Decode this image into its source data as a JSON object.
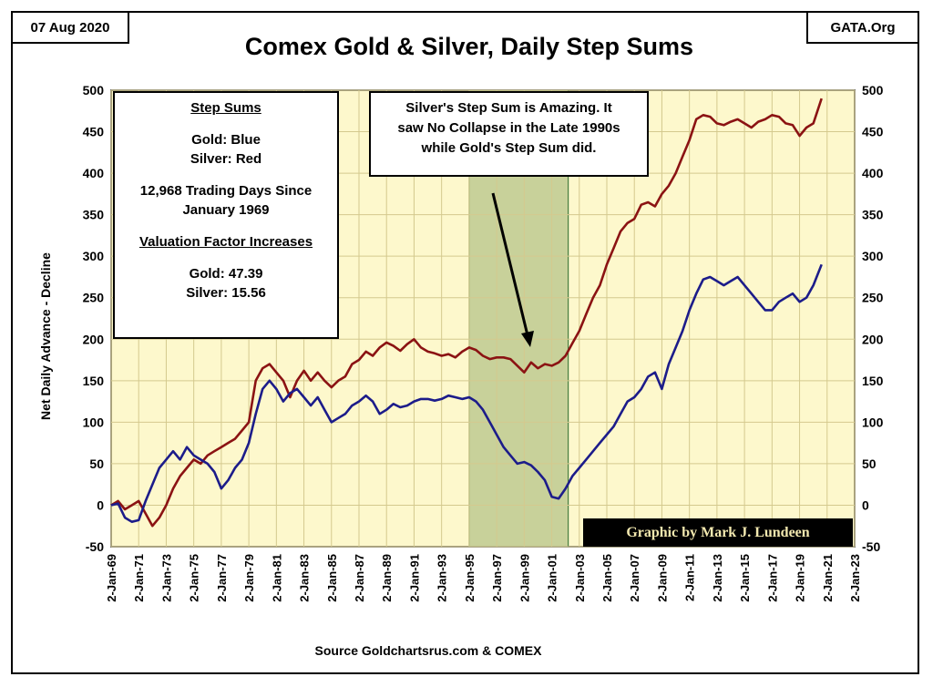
{
  "header": {
    "date": "07 Aug 2020",
    "site": "GATA.Org",
    "title": "Comex Gold & Silver, Daily Step Sums",
    "source": "Source Goldchartsrus.com & COMEX"
  },
  "legend_box": {
    "heading": "Step Sums",
    "gold": "Gold: Blue",
    "silver": "Silver: Red",
    "days_line1": "12,968 Trading Days Since",
    "days_line2": "January 1969",
    "valuation_heading": "Valuation Factor Increases",
    "gold_factor": "Gold:  47.39",
    "silver_factor": "Silver:  15.56"
  },
  "note_box": {
    "line1": "Silver's Step Sum is Amazing.  It",
    "line2": "saw No Collapse in the Late 1990s",
    "line3": "while Gold's Step Sum did."
  },
  "credit": "Graphic by Mark J. Lundeen",
  "colors": {
    "plot_bg": "#fdf8cc",
    "gold_line": "#1c1c8a",
    "silver_line": "#8b1313",
    "highlight": "#b5c48a"
  },
  "chart_data": {
    "type": "line",
    "title": "Comex Gold & Silver, Daily Step Sums",
    "ylabel": "Net Daily Advance - Decline",
    "xlabel": "",
    "ylim": [
      -50,
      500
    ],
    "xlim": [
      1969,
      2023
    ],
    "y_ticks": [
      "-50",
      "0",
      "50",
      "100",
      "150",
      "200",
      "250",
      "300",
      "350",
      "400",
      "450",
      "500"
    ],
    "x_ticks": [
      "2-Jan-69",
      "2-Jan-71",
      "2-Jan-73",
      "2-Jan-75",
      "2-Jan-77",
      "2-Jan-79",
      "2-Jan-81",
      "2-Jan-83",
      "2-Jan-85",
      "2-Jan-87",
      "2-Jan-89",
      "2-Jan-91",
      "2-Jan-93",
      "2-Jan-95",
      "2-Jan-97",
      "2-Jan-99",
      "2-Jan-01",
      "2-Jan-03",
      "2-Jan-05",
      "2-Jan-07",
      "2-Jan-09",
      "2-Jan-11",
      "2-Jan-13",
      "2-Jan-15",
      "2-Jan-17",
      "2-Jan-19",
      "2-Jan-21",
      "2-Jan-23"
    ],
    "highlight_range": [
      1995,
      2002.2
    ],
    "grid": true,
    "series": [
      {
        "key": "gold",
        "color": "#1c1c8a",
        "x": [
          1969,
          1969.5,
          1970,
          1970.5,
          1971,
          1971.5,
          1972,
          1972.5,
          1973,
          1973.5,
          1974,
          1974.5,
          1975,
          1975.5,
          1976,
          1976.5,
          1977,
          1977.5,
          1978,
          1978.5,
          1979,
          1979.5,
          1980,
          1980.5,
          1981,
          1981.5,
          1982,
          1982.5,
          1983,
          1983.5,
          1984,
          1984.5,
          1985,
          1985.5,
          1986,
          1986.5,
          1987,
          1987.5,
          1988,
          1988.5,
          1989,
          1989.5,
          1990,
          1990.5,
          1991,
          1991.5,
          1992,
          1992.5,
          1993,
          1993.5,
          1994,
          1994.5,
          1995,
          1995.5,
          1996,
          1996.5,
          1997,
          1997.5,
          1998,
          1998.5,
          1999,
          1999.5,
          2000,
          2000.5,
          2001,
          2001.5,
          2002,
          2002.5,
          2003,
          2003.5,
          2004,
          2004.5,
          2005,
          2005.5,
          2006,
          2006.5,
          2007,
          2007.5,
          2008,
          2008.5,
          2009,
          2009.5,
          2010,
          2010.5,
          2011,
          2011.5,
          2012,
          2012.5,
          2013,
          2013.5,
          2014,
          2014.5,
          2015,
          2015.5,
          2016,
          2016.5,
          2017,
          2017.5,
          2018,
          2018.5,
          2019,
          2019.5,
          2020,
          2020.6
        ],
        "y": [
          0,
          2,
          -15,
          -20,
          -18,
          5,
          25,
          45,
          55,
          65,
          55,
          70,
          60,
          55,
          50,
          40,
          20,
          30,
          45,
          55,
          75,
          110,
          140,
          150,
          140,
          125,
          135,
          140,
          130,
          120,
          130,
          115,
          100,
          105,
          110,
          120,
          125,
          132,
          125,
          110,
          115,
          122,
          118,
          120,
          125,
          128,
          128,
          126,
          128,
          132,
          130,
          128,
          130,
          125,
          115,
          100,
          85,
          70,
          60,
          50,
          52,
          48,
          40,
          30,
          10,
          8,
          20,
          35,
          45,
          55,
          65,
          75,
          85,
          95,
          110,
          125,
          130,
          140,
          155,
          160,
          140,
          170,
          190,
          210,
          235,
          255,
          272,
          275,
          270,
          265,
          270,
          275,
          265,
          255,
          245,
          235,
          235,
          245,
          250,
          255,
          245,
          250,
          265,
          290
        ]
      },
      {
        "key": "silver",
        "color": "#8b1313",
        "x": [
          1969,
          1969.5,
          1970,
          1970.5,
          1971,
          1971.5,
          1972,
          1972.5,
          1973,
          1973.5,
          1974,
          1974.5,
          1975,
          1975.5,
          1976,
          1976.5,
          1977,
          1977.5,
          1978,
          1978.5,
          1979,
          1979.5,
          1980,
          1980.5,
          1981,
          1981.5,
          1982,
          1982.5,
          1983,
          1983.5,
          1984,
          1984.5,
          1985,
          1985.5,
          1986,
          1986.5,
          1987,
          1987.5,
          1988,
          1988.5,
          1989,
          1989.5,
          1990,
          1990.5,
          1991,
          1991.5,
          1992,
          1992.5,
          1993,
          1993.5,
          1994,
          1994.5,
          1995,
          1995.5,
          1996,
          1996.5,
          1997,
          1997.5,
          1998,
          1998.5,
          1999,
          1999.5,
          2000,
          2000.5,
          2001,
          2001.5,
          2002,
          2002.5,
          2003,
          2003.5,
          2004,
          2004.5,
          2005,
          2005.5,
          2006,
          2006.5,
          2007,
          2007.5,
          2008,
          2008.5,
          2009,
          2009.5,
          2010,
          2010.5,
          2011,
          2011.5,
          2012,
          2012.5,
          2013,
          2013.5,
          2014,
          2014.5,
          2015,
          2015.5,
          2016,
          2016.5,
          2017,
          2017.5,
          2018,
          2018.5,
          2019,
          2019.5,
          2020,
          2020.6
        ],
        "y": [
          0,
          5,
          -5,
          0,
          5,
          -10,
          -25,
          -15,
          0,
          20,
          35,
          45,
          55,
          50,
          60,
          65,
          70,
          75,
          80,
          90,
          100,
          150,
          165,
          170,
          160,
          150,
          130,
          150,
          162,
          150,
          160,
          150,
          142,
          150,
          155,
          170,
          175,
          185,
          180,
          190,
          196,
          192,
          186,
          194,
          200,
          190,
          185,
          183,
          180,
          182,
          178,
          185,
          190,
          187,
          180,
          176,
          178,
          178,
          176,
          168,
          160,
          172,
          165,
          170,
          168,
          172,
          180,
          195,
          210,
          230,
          250,
          265,
          290,
          310,
          330,
          340,
          345,
          362,
          365,
          360,
          375,
          385,
          400,
          420,
          440,
          465,
          470,
          468,
          460,
          458,
          462,
          465,
          460,
          455,
          462,
          465,
          470,
          468,
          460,
          458,
          445,
          455,
          460,
          490
        ]
      }
    ]
  }
}
